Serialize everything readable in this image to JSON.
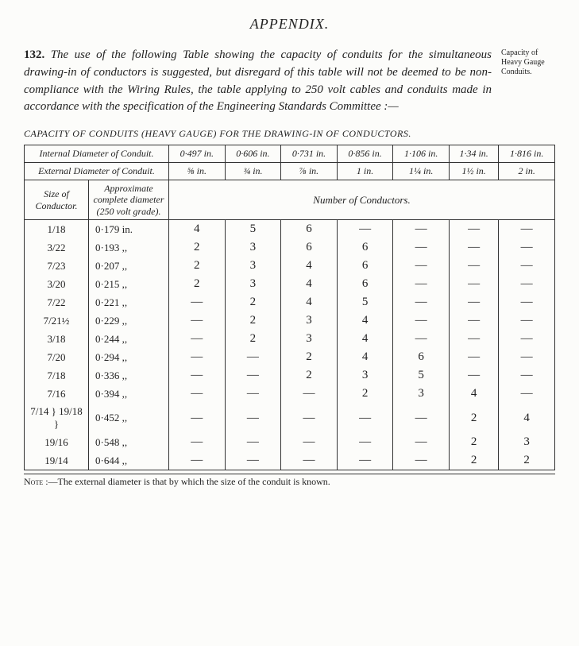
{
  "page_title": "APPENDIX.",
  "margin_note": "Capacity of Heavy Gauge Conduits.",
  "paragraph": {
    "num": "132.",
    "text": "The use of the following Table showing the capacity of conduits for the simultaneous drawing-in of conductors is suggested, but disregard of this table will not be deemed to be non-compliance with the Wiring Rules, the table applying to 250 volt cables and conduits made in accordance with the specification of the Engineering Standards Committee :—"
  },
  "table_title": "CAPACITY OF CONDUITS (HEAVY GAUGE) FOR THE DRAWING-IN OF CONDUCTORS.",
  "headers": {
    "internal_label": "Internal Diameter of Conduit.",
    "external_label": "External Diameter of Conduit.",
    "size_label": "Size of Conductor.",
    "diameter_label": "Approximate complete diameter (250 volt grade).",
    "spanner": "Number of Conductors.",
    "internal": [
      "0·497 in.",
      "0·606 in.",
      "0·731 in.",
      "0·856 in.",
      "1·106 in.",
      "1·34 in.",
      "1·816 in."
    ],
    "external": [
      "⅝ in.",
      "¾ in.",
      "⅞ in.",
      "1 in.",
      "1¼ in.",
      "1½ in.",
      "2 in."
    ]
  },
  "rows": [
    {
      "size": "1/18",
      "diameter": "0·179 in.",
      "vals": [
        "4",
        "5",
        "6",
        "—",
        "—",
        "—",
        "—"
      ]
    },
    {
      "size": "3/22",
      "diameter": "0·193  ,,",
      "vals": [
        "2",
        "3",
        "6",
        "6",
        "—",
        "—",
        "—"
      ]
    },
    {
      "size": "7/23",
      "diameter": "0·207  ,,",
      "vals": [
        "2",
        "3",
        "4",
        "6",
        "—",
        "—",
        "—"
      ]
    },
    {
      "size": "3/20",
      "diameter": "0·215  ,,",
      "vals": [
        "2",
        "3",
        "4",
        "6",
        "—",
        "—",
        "—"
      ]
    },
    {
      "size": "7/22",
      "diameter": "0·221  ,,",
      "vals": [
        "—",
        "2",
        "4",
        "5",
        "—",
        "—",
        "—"
      ]
    },
    {
      "size": "7/21½",
      "diameter": "0·229  ,,",
      "vals": [
        "—",
        "2",
        "3",
        "4",
        "—",
        "—",
        "—"
      ]
    },
    {
      "size": "3/18",
      "diameter": "0·244  ,,",
      "vals": [
        "—",
        "2",
        "3",
        "4",
        "—",
        "—",
        "—"
      ]
    },
    {
      "size": "7/20",
      "diameter": "0·294  ,,",
      "vals": [
        "—",
        "—",
        "2",
        "4",
        "6",
        "—",
        "—"
      ]
    },
    {
      "size": "7/18",
      "diameter": "0·336  ,,",
      "vals": [
        "—",
        "—",
        "2",
        "3",
        "5",
        "—",
        "—"
      ]
    },
    {
      "size": "7/16",
      "diameter": "0·394  ,,",
      "vals": [
        "—",
        "—",
        "—",
        "2",
        "3",
        "4",
        "—"
      ]
    },
    {
      "size": "7/14 } 19/18 }",
      "diameter": "0·452  ,,",
      "vals": [
        "—",
        "—",
        "—",
        "—",
        "—",
        "2",
        "4"
      ]
    },
    {
      "size": "19/16",
      "diameter": "0·548  ,,",
      "vals": [
        "—",
        "—",
        "—",
        "—",
        "—",
        "2",
        "3"
      ]
    },
    {
      "size": "19/14",
      "diameter": "0·644  ,,",
      "vals": [
        "—",
        "—",
        "—",
        "—",
        "—",
        "2",
        "2"
      ]
    }
  ],
  "note_label": "Note",
  "note_text": ":—The external diameter is that by which the size of the conduit is known."
}
